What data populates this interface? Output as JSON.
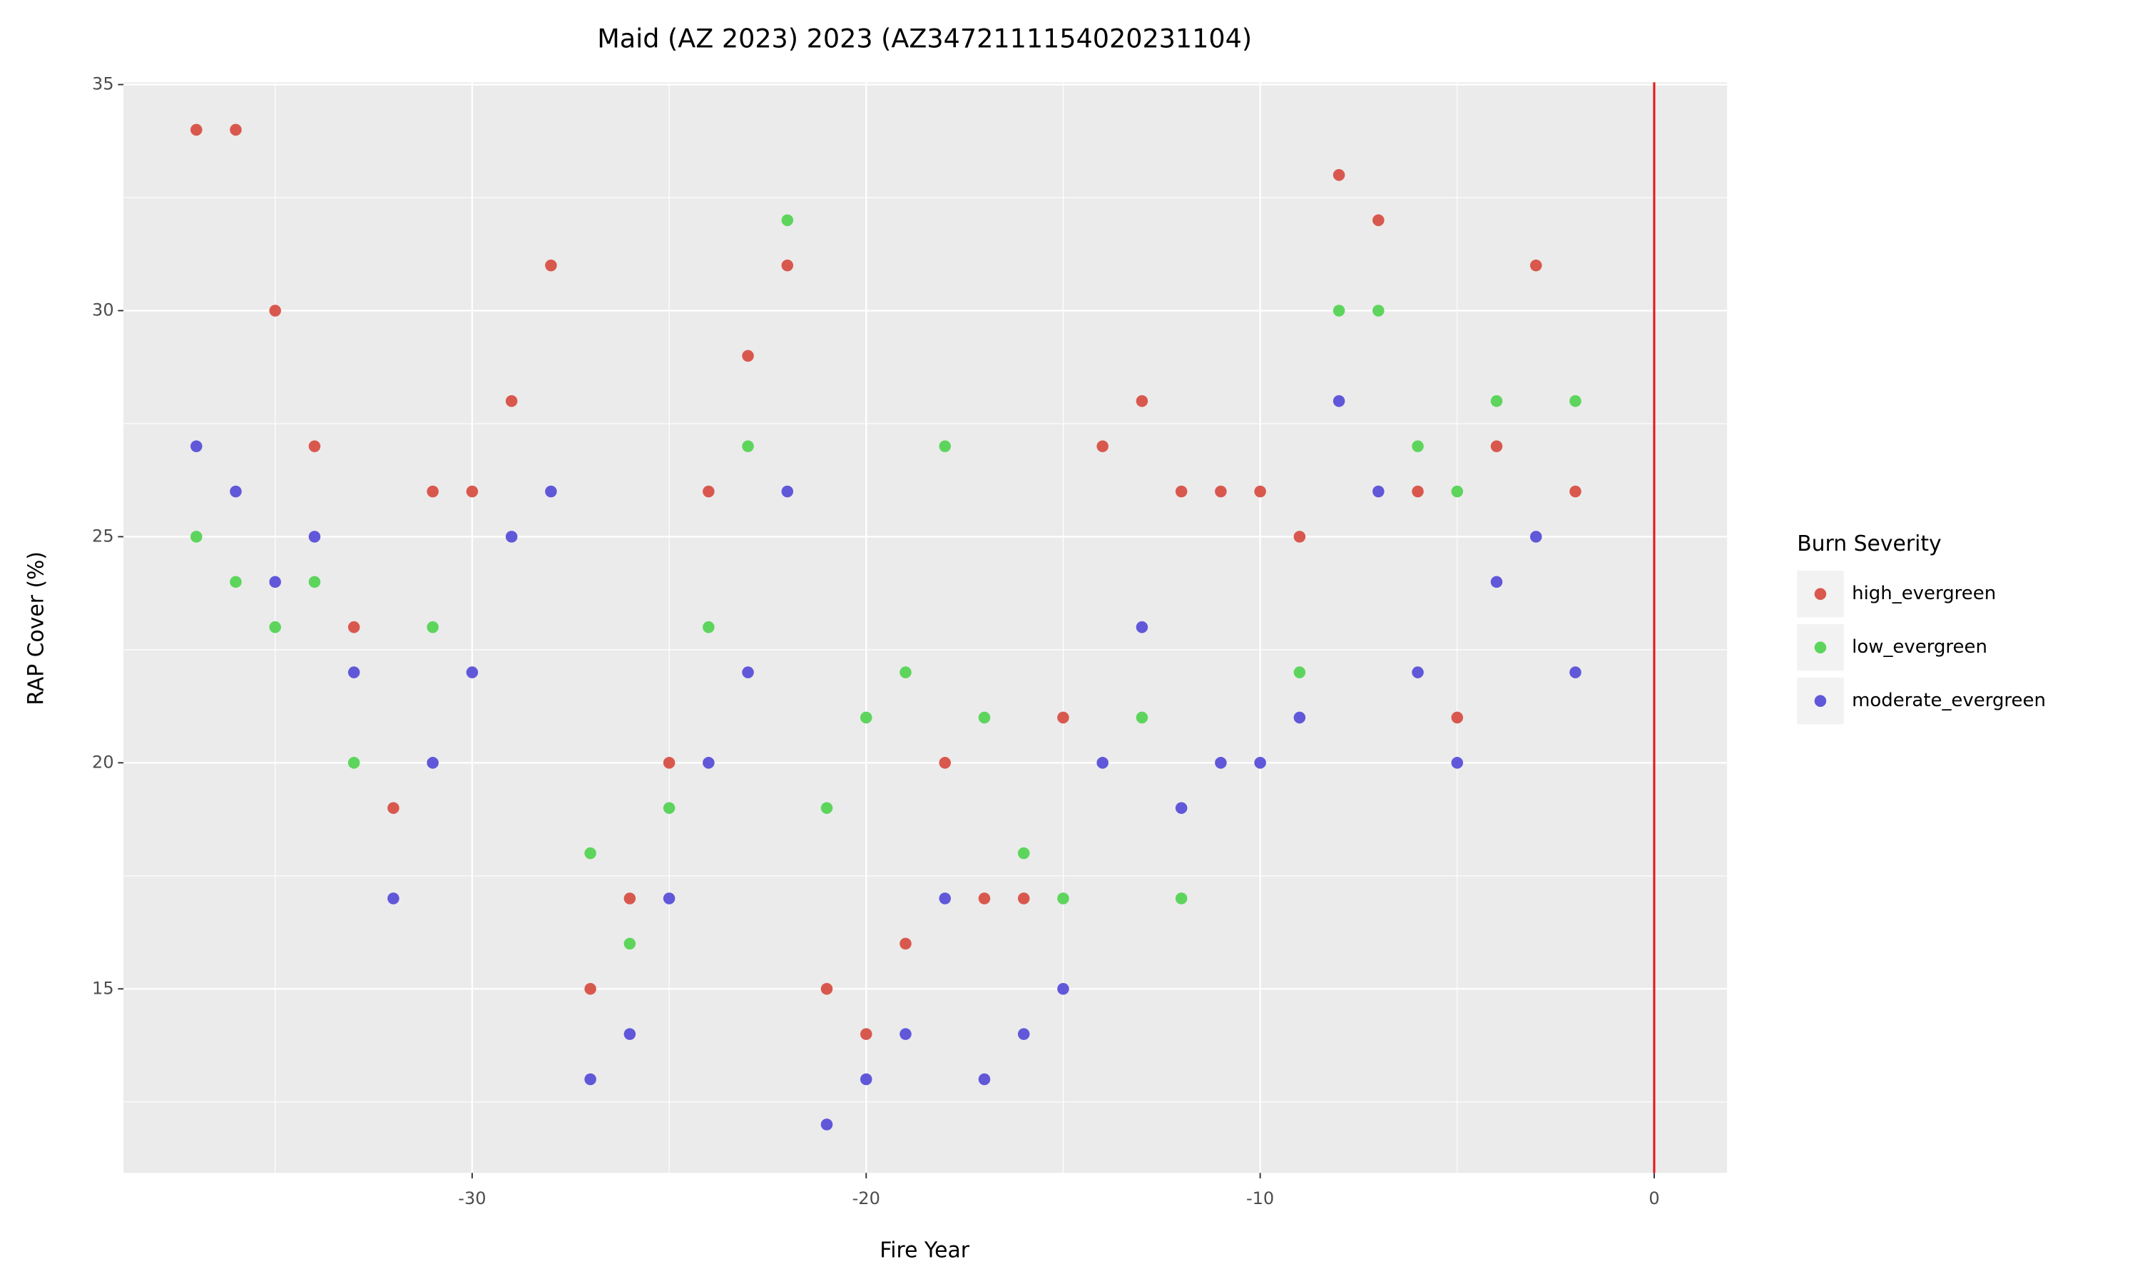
{
  "chart_data": {
    "type": "scatter",
    "title": "Maid (AZ 2023) 2023 (AZ3472111154020231104)",
    "x_label": "Fire Year",
    "y_label": "RAP Cover (%)",
    "legend_title": "Burn Severity",
    "legend_position": "right",
    "xlim": [
      -38.85,
      1.85
    ],
    "ylim": [
      10.93,
      35.05
    ],
    "xticks": [
      -30,
      -20,
      -10,
      0
    ],
    "yticks": [
      15,
      20,
      25,
      30,
      35
    ],
    "xminor": [
      -35,
      -25,
      -15,
      -5
    ],
    "yminor": [
      12.5,
      17.5,
      22.5,
      27.5,
      32.5
    ],
    "grid": true,
    "vline": {
      "x": 0,
      "color": "#e31a1c"
    },
    "series": [
      {
        "name": "high_evergreen",
        "color": "#d9584e",
        "x": [
          -37,
          -36,
          -35,
          -34,
          -33,
          -32,
          -31,
          -30,
          -29,
          -28,
          -27,
          -26,
          -25,
          -24,
          -23,
          -22,
          -21,
          -20,
          -19,
          -18,
          -17,
          -16,
          -15,
          -14,
          -13,
          -12,
          -11,
          -10,
          -9,
          -8,
          -7,
          -6,
          -5,
          -4,
          -3,
          -2
        ],
        "values": [
          34,
          34,
          30,
          27,
          23,
          19,
          26,
          26,
          28,
          31,
          15,
          17,
          20,
          26,
          29,
          31,
          15,
          14,
          16,
          20,
          17,
          17,
          21,
          27,
          28,
          26,
          26,
          26,
          25,
          33,
          32,
          26,
          21,
          27,
          31,
          26
        ]
      },
      {
        "name": "low_evergreen",
        "color": "#5dd55d",
        "x": [
          -37,
          -36,
          -35,
          -34,
          -33,
          -31,
          -27,
          -26,
          -25,
          -24,
          -23,
          -22,
          -21,
          -20,
          -19,
          -18,
          -17,
          -16,
          -15,
          -13,
          -12,
          -9,
          -8,
          -7,
          -6,
          -5,
          -4,
          -2
        ],
        "values": [
          25,
          24,
          23,
          24,
          20,
          23,
          18,
          16,
          19,
          23,
          27,
          32,
          19,
          21,
          22,
          27,
          21,
          18,
          17,
          21,
          17,
          22,
          30,
          30,
          27,
          26,
          28,
          28
        ]
      },
      {
        "name": "moderate_evergreen",
        "color": "#6157d9",
        "x": [
          -37,
          -36,
          -35,
          -34,
          -33,
          -32,
          -31,
          -30,
          -29,
          -28,
          -27,
          -26,
          -25,
          -24,
          -23,
          -22,
          -21,
          -20,
          -19,
          -18,
          -17,
          -16,
          -15,
          -14,
          -13,
          -12,
          -11,
          -10,
          -9,
          -8,
          -7,
          -6,
          -5,
          -4,
          -3,
          -2
        ],
        "values": [
          27,
          26,
          24,
          25,
          22,
          17,
          20,
          22,
          25,
          26,
          13,
          14,
          17,
          20,
          22,
          26,
          12,
          13,
          14,
          17,
          13,
          14,
          15,
          20,
          23,
          19,
          20,
          20,
          21,
          28,
          26,
          22,
          20,
          24,
          25,
          22
        ]
      }
    ]
  }
}
